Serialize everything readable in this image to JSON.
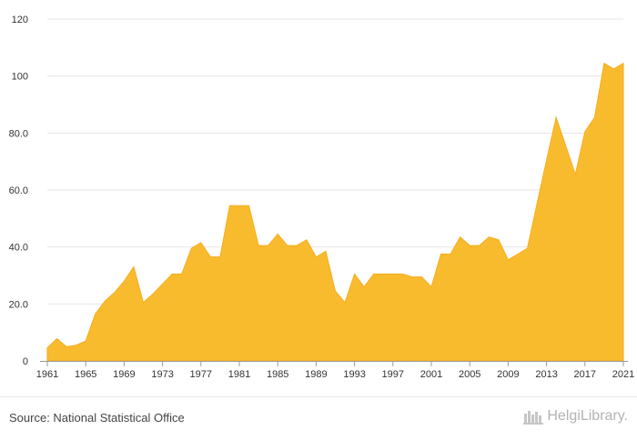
{
  "chart_data": {
    "type": "area",
    "title": "",
    "xlabel": "",
    "ylabel": "",
    "ylim": [
      0,
      120
    ],
    "yticks": [
      "0",
      "20.0",
      "40.0",
      "60.0",
      "80.0",
      "100",
      "120"
    ],
    "xticks": [
      "1961",
      "1965",
      "1969",
      "1973",
      "1977",
      "1981",
      "1985",
      "1989",
      "1993",
      "1997",
      "2001",
      "2005",
      "2009",
      "2013",
      "2017",
      "2021"
    ],
    "grid": true,
    "legend": "none",
    "color": "#f9bb2e",
    "x": [
      1961,
      1962,
      1963,
      1964,
      1965,
      1966,
      1967,
      1968,
      1969,
      1970,
      1971,
      1972,
      1973,
      1974,
      1975,
      1976,
      1977,
      1978,
      1979,
      1980,
      1981,
      1982,
      1983,
      1984,
      1985,
      1986,
      1987,
      1988,
      1989,
      1990,
      1991,
      1992,
      1993,
      1994,
      1995,
      1996,
      1997,
      1998,
      1999,
      2000,
      2001,
      2002,
      2003,
      2004,
      2005,
      2006,
      2007,
      2008,
      2009,
      2010,
      2011,
      2012,
      2013,
      2014,
      2015,
      2016,
      2017,
      2018,
      2019,
      2020,
      2021
    ],
    "values": [
      4.6,
      7.8,
      5.0,
      5.5,
      7.0,
      16.5,
      21.0,
      24.0,
      28.0,
      33.0,
      20.5,
      23.5,
      27.0,
      30.5,
      30.5,
      39.5,
      41.5,
      36.5,
      36.5,
      54.5,
      54.5,
      54.5,
      40.5,
      40.5,
      44.5,
      40.5,
      40.5,
      42.5,
      36.5,
      38.5,
      24.5,
      20.5,
      30.5,
      26.0,
      30.5,
      30.5,
      30.5,
      30.5,
      29.5,
      29.5,
      26.0,
      37.5,
      37.5,
      43.5,
      40.5,
      40.5,
      43.5,
      42.5,
      35.5,
      37.5,
      39.5,
      55.0,
      70.5,
      85.5,
      75.5,
      65.5,
      80.5,
      85.5,
      104.5,
      102.5,
      104.5
    ]
  },
  "footer": {
    "source": "Source: National Statistical Office",
    "logo_text": "HelgiLibrary."
  }
}
